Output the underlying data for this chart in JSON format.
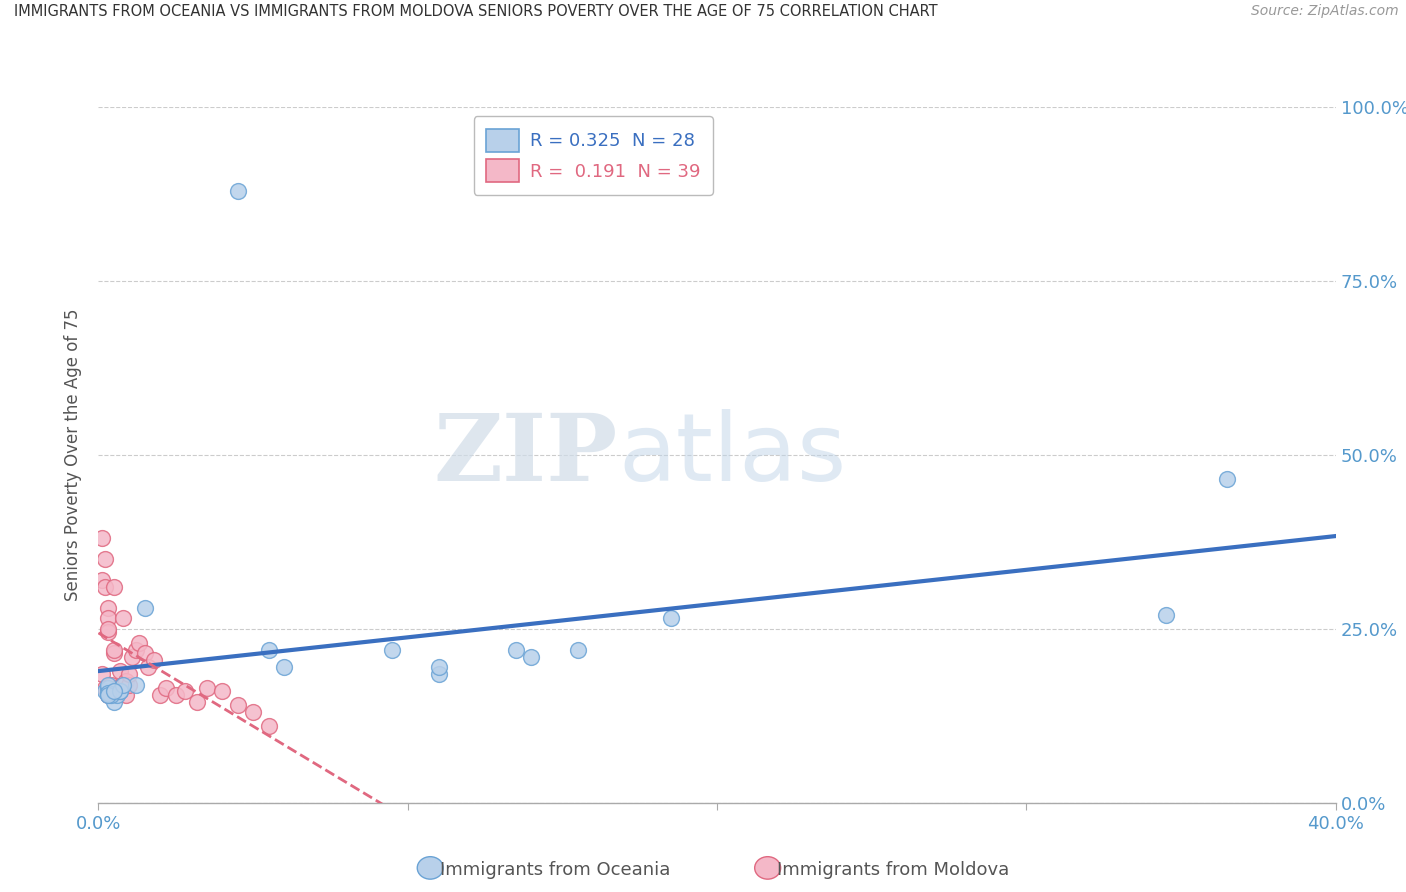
{
  "title": "IMMIGRANTS FROM OCEANIA VS IMMIGRANTS FROM MOLDOVA SENIORS POVERTY OVER THE AGE OF 75 CORRELATION CHART",
  "source": "Source: ZipAtlas.com",
  "ylabel": "Seniors Poverty Over the Age of 75",
  "watermark_zip": "ZIP",
  "watermark_atlas": "atlas",
  "xlim": [
    0.0,
    0.4
  ],
  "ylim": [
    0.0,
    1.0
  ],
  "legend_oceania_R": "0.325",
  "legend_oceania_N": "28",
  "legend_moldova_R": "0.191",
  "legend_moldova_N": "39",
  "legend_label_oceania": "Immigrants from Oceania",
  "legend_label_moldova": "Immigrants from Moldova",
  "color_oceania_fill": "#b8d0ea",
  "color_oceania_edge": "#6aa3d5",
  "color_moldova_fill": "#f4b8c8",
  "color_moldova_edge": "#e06880",
  "color_line_oceania": "#3a6fc0",
  "color_line_moldova": "#e06880",
  "grid_color": "#cccccc",
  "background_color": "#ffffff",
  "oceania_x": [
    0.045,
    0.002,
    0.003,
    0.004,
    0.005,
    0.003,
    0.003,
    0.006,
    0.007,
    0.004,
    0.003,
    0.012,
    0.015,
    0.003,
    0.007,
    0.008,
    0.005,
    0.055,
    0.06,
    0.095,
    0.11,
    0.11,
    0.135,
    0.14,
    0.155,
    0.185,
    0.345,
    0.365
  ],
  "oceania_y": [
    0.88,
    0.16,
    0.155,
    0.155,
    0.145,
    0.165,
    0.17,
    0.155,
    0.16,
    0.155,
    0.158,
    0.17,
    0.28,
    0.155,
    0.16,
    0.17,
    0.16,
    0.22,
    0.195,
    0.22,
    0.185,
    0.195,
    0.22,
    0.21,
    0.22,
    0.265,
    0.27,
    0.465
  ],
  "moldova_x": [
    0.001,
    0.001,
    0.001,
    0.002,
    0.002,
    0.002,
    0.003,
    0.003,
    0.003,
    0.003,
    0.003,
    0.004,
    0.005,
    0.005,
    0.005,
    0.006,
    0.007,
    0.008,
    0.008,
    0.009,
    0.009,
    0.01,
    0.01,
    0.011,
    0.012,
    0.013,
    0.015,
    0.016,
    0.018,
    0.02,
    0.022,
    0.025,
    0.028,
    0.032,
    0.035,
    0.04,
    0.045,
    0.05,
    0.055
  ],
  "moldova_y": [
    0.38,
    0.32,
    0.185,
    0.35,
    0.31,
    0.165,
    0.28,
    0.265,
    0.155,
    0.245,
    0.25,
    0.17,
    0.31,
    0.215,
    0.22,
    0.165,
    0.19,
    0.265,
    0.17,
    0.175,
    0.155,
    0.17,
    0.185,
    0.21,
    0.22,
    0.23,
    0.215,
    0.195,
    0.205,
    0.155,
    0.165,
    0.155,
    0.16,
    0.145,
    0.165,
    0.16,
    0.14,
    0.13,
    0.11
  ],
  "trendline_x_start": 0.0,
  "trendline_x_end": 0.4
}
